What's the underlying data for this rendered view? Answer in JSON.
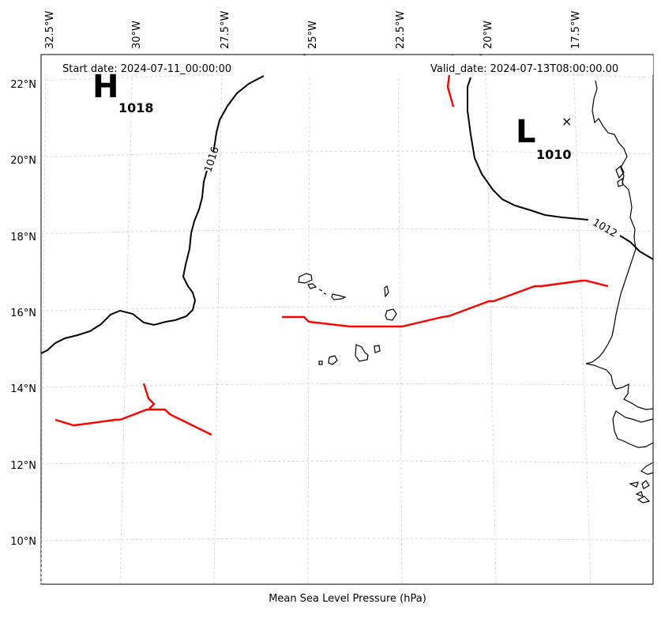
{
  "header": {
    "start_date": "Start date: 2024-07-11_00:00:00",
    "valid_date": "Valid_date: 2024-07-13T08:00:00.00"
  },
  "footer": {
    "caption": "Mean Sea Level Pressure (hPa)"
  },
  "lon_labels": [
    "32.5°W",
    "30°W",
    "27.5°W",
    "25°W",
    "22.5°W",
    "20°W",
    "17.5°W"
  ],
  "lat_labels": [
    "22°N",
    "20°N",
    "18°N",
    "16°N",
    "14°N",
    "12°N",
    "10°N"
  ],
  "pressure_centers": {
    "high": {
      "letter": "H",
      "value": "1018"
    },
    "low": {
      "letter": "L",
      "value": "1010",
      "marker": "×"
    }
  },
  "isobar_labels": [
    "1016",
    "1012"
  ],
  "colors": {
    "isobar": "#000000",
    "front": "#ff0000",
    "grid": "#cccccc",
    "coast": "#000000"
  }
}
